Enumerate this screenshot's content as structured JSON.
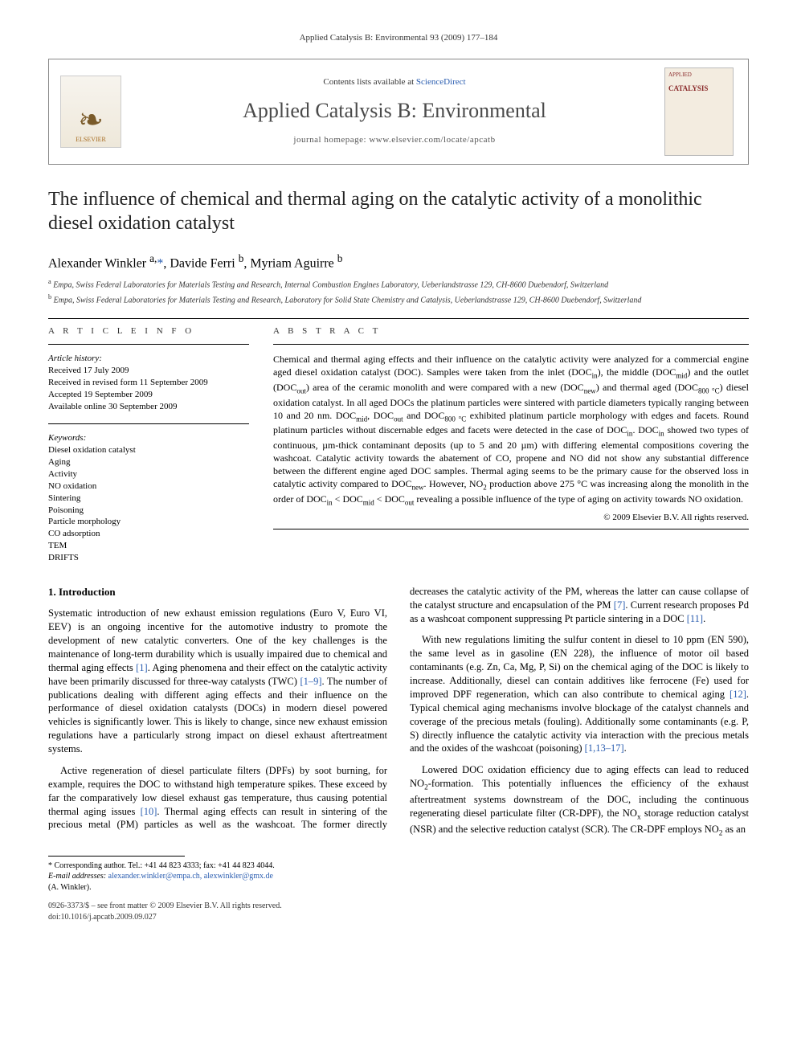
{
  "running_head": "Applied Catalysis B: Environmental 93 (2009) 177–184",
  "banner": {
    "contents_prefix": "Contents lists available at ",
    "contents_link": "ScienceDirect",
    "journal_name": "Applied Catalysis B: Environmental",
    "homepage_prefix": "journal homepage: ",
    "homepage_url": "www.elsevier.com/locate/apcatb",
    "publisher": "ELSEVIER",
    "cover_label_top": "APPLIED",
    "cover_label_main": "CATALYSIS"
  },
  "title": "The influence of chemical and thermal aging on the catalytic activity of a monolithic diesel oxidation catalyst",
  "authors_html": "Alexander Winkler <sup>a,</sup>*, Davide Ferri <sup>b</sup>, Myriam Aguirre <sup>b</sup>",
  "affiliations": [
    "a Empa, Swiss Federal Laboratories for Materials Testing and Research, Internal Combustion Engines Laboratory, Ueberlandstrasse 129, CH-8600 Duebendorf, Switzerland",
    "b Empa, Swiss Federal Laboratories for Materials Testing and Research, Laboratory for Solid State Chemistry and Catalysis, Ueberlandstrasse 129, CH-8600 Duebendorf, Switzerland"
  ],
  "labels": {
    "article_info": "A R T I C L E   I N F O",
    "abstract": "A B S T R A C T",
    "history_heading": "Article history:",
    "keywords_heading": "Keywords:"
  },
  "history": [
    "Received 17 July 2009",
    "Received in revised form 11 September 2009",
    "Accepted 19 September 2009",
    "Available online 30 September 2009"
  ],
  "keywords": [
    "Diesel oxidation catalyst",
    "Aging",
    "Activity",
    "NO oxidation",
    "Sintering",
    "Poisoning",
    "Particle morphology",
    "CO adsorption",
    "TEM",
    "DRIFTS"
  ],
  "abstract": "Chemical and thermal aging effects and their influence on the catalytic activity were analyzed for a commercial engine aged diesel oxidation catalyst (DOC). Samples were taken from the inlet (DOCin), the middle (DOCmid) and the outlet (DOCout) area of the ceramic monolith and were compared with a new (DOCnew) and thermal aged (DOC800 °C) diesel oxidation catalyst. In all aged DOCs the platinum particles were sintered with particle diameters typically ranging between 10 and 20 nm. DOCmid, DOCout and DOC800 °C exhibited platinum particle morphology with edges and facets. Round platinum particles without discernable edges and facets were detected in the case of DOCin. DOCin showed two types of continuous, µm-thick contaminant deposits (up to 5 and 20 µm) with differing elemental compositions covering the washcoat. Catalytic activity towards the abatement of CO, propene and NO did not show any substantial difference between the different engine aged DOC samples. Thermal aging seems to be the primary cause for the observed loss in catalytic activity compared to DOCnew. However, NO2 production above 275 °C was increasing along the monolith in the order of DOCin < DOCmid < DOCout revealing a possible influence of the type of aging on activity towards NO oxidation.",
  "copyright": "© 2009 Elsevier B.V. All rights reserved.",
  "section1_heading": "1. Introduction",
  "para1": "Systematic introduction of new exhaust emission regulations (Euro V, Euro VI, EEV) is an ongoing incentive for the automotive industry to promote the development of new catalytic converters. One of the key challenges is the maintenance of long-term durability which is usually impaired due to chemical and thermal aging effects [1]. Aging phenomena and their effect on the catalytic activity have been primarily discussed for three-way catalysts (TWC) [1–9]. The number of publications dealing with different aging effects and their influence on the performance of diesel oxidation catalysts (DOCs) in modern diesel powered vehicles is significantly lower. This is likely to change, since new exhaust emission regulations have a particularly strong impact on diesel exhaust aftertreatment systems.",
  "para2": "Active regeneration of diesel particulate filters (DPFs) by soot burning, for example, requires the DOC to withstand high temperature spikes. These exceed by far the comparatively low diesel exhaust gas temperature, thus causing potential thermal aging issues [10]. Thermal aging effects can result in sintering of the precious metal (PM) particles as well as the washcoat. The former directly decreases the catalytic activity of the PM, whereas the latter can cause collapse of the catalyst structure and encapsulation of the PM [7]. Current research proposes Pd as a washcoat component suppressing Pt particle sintering in a DOC [11].",
  "para3": "With new regulations limiting the sulfur content in diesel to 10 ppm (EN 590), the same level as in gasoline (EN 228), the influence of motor oil based contaminants (e.g. Zn, Ca, Mg, P, Si) on the chemical aging of the DOC is likely to increase. Additionally, diesel can contain additives like ferrocene (Fe) used for improved DPF regeneration, which can also contribute to chemical aging [12]. Typical chemical aging mechanisms involve blockage of the catalyst channels and coverage of the precious metals (fouling). Additionally some contaminants (e.g. P, S) directly influence the catalytic activity via interaction with the precious metals and the oxides of the washcoat (poisoning) [1,13–17].",
  "para4": "Lowered DOC oxidation efficiency due to aging effects can lead to reduced NO2-formation. This potentially influences the efficiency of the exhaust aftertreatment systems downstream of the DOC, including the continuous regenerating diesel particulate filter (CR-DPF), the NOx storage reduction catalyst (NSR) and the selective reduction catalyst (SCR). The CR-DPF employs NO2 as an",
  "footnote": {
    "corr": "* Corresponding author. Tel.: +41 44 823 4333; fax: +41 44 823 4044.",
    "email_label": "E-mail addresses:",
    "emails": "alexander.winkler@empa.ch, alexwinkler@gmx.de",
    "author_paren": "(A. Winkler)."
  },
  "doi_line1": "0926-3373/$ – see front matter © 2009 Elsevier B.V. All rights reserved.",
  "doi_line2": "doi:10.1016/j.apcatb.2009.09.027"
}
